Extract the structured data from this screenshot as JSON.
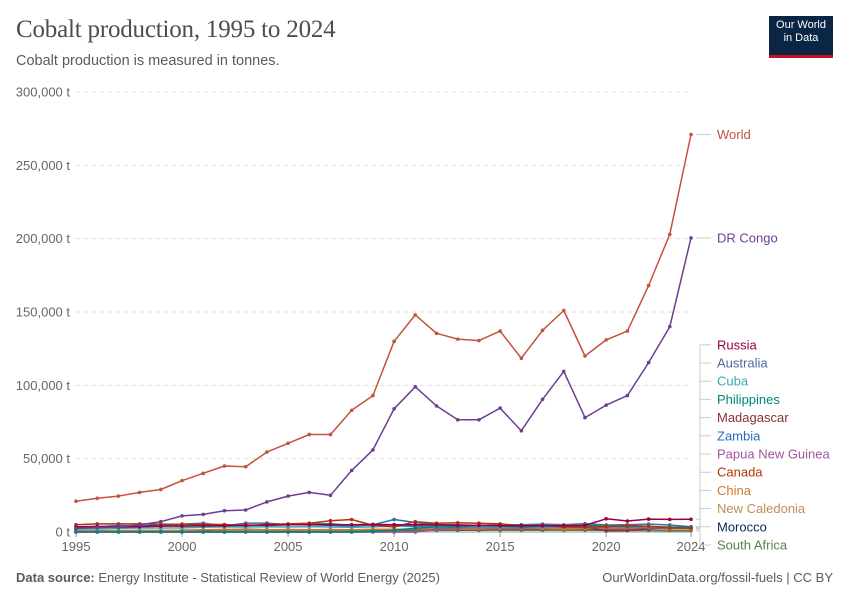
{
  "header": {
    "title": "Cobalt production, 1995 to 2024",
    "subtitle": "Cobalt production is measured in tonnes.",
    "logo_line1": "Our World",
    "logo_line2": "in Data"
  },
  "footer": {
    "source_label": "Data source:",
    "source_text": "Energy Institute - Statistical Review of World Energy (2025)",
    "link_text": "OurWorldinData.org/fossil-fuels | CC BY"
  },
  "chart_data": {
    "type": "line",
    "title": "Cobalt production, 1995 to 2024",
    "subtitle": "Cobalt production is measured in tonnes.",
    "ylim": [
      0,
      300000
    ],
    "y_ticks": [
      0,
      50000,
      100000,
      150000,
      200000,
      250000,
      300000
    ],
    "y_tick_labels": [
      "0 t",
      "50,000 t",
      "100,000 t",
      "150,000 t",
      "200,000 t",
      "250,000 t",
      "300,000 t"
    ],
    "xlim": [
      1995,
      2024
    ],
    "x_ticks": [
      1995,
      2000,
      2005,
      2010,
      2015,
      2020,
      2024
    ],
    "x_tick_labels": [
      "1995",
      "2000",
      "2005",
      "2010",
      "2015",
      "2020",
      "2024"
    ],
    "grid": "horizontal dashed",
    "legend": "right, labels at line ends",
    "x": [
      1995,
      1996,
      1997,
      1998,
      1999,
      2000,
      2001,
      2002,
      2003,
      2004,
      2005,
      2006,
      2007,
      2008,
      2009,
      2010,
      2011,
      2012,
      2013,
      2014,
      2015,
      2016,
      2017,
      2018,
      2019,
      2020,
      2021,
      2022,
      2023,
      2024
    ],
    "series": [
      {
        "name": "World",
        "color": "#c4523e",
        "values": [
          21000,
          23000,
          24500,
          27000,
          29000,
          35000,
          40000,
          45000,
          44500,
          54500,
          60500,
          66500,
          66500,
          83000,
          93000,
          130000,
          148000,
          135500,
          131500,
          130500,
          137000,
          118500,
          137500,
          151000,
          120000,
          131000,
          137000,
          168000,
          203000,
          271000
        ]
      },
      {
        "name": "DR Congo",
        "color": "#6d3e91",
        "values": [
          2500,
          3000,
          3500,
          5000,
          7000,
          11000,
          12000,
          14500,
          15000,
          20500,
          24500,
          27000,
          25000,
          42000,
          56000,
          84000,
          99000,
          86000,
          76500,
          76500,
          84500,
          69000,
          90500,
          109500,
          78000,
          86500,
          93000,
          115500,
          140000,
          200500
        ]
      },
      {
        "name": "Russia",
        "color": "#970046",
        "values": [
          3500,
          3800,
          3500,
          3800,
          4000,
          4000,
          4200,
          4200,
          4700,
          4700,
          5000,
          5000,
          5000,
          5000,
          5200,
          5000,
          5000,
          5000,
          4500,
          4500,
          4300,
          4300,
          4200,
          4200,
          4500,
          9000,
          7500,
          8800,
          8600,
          8700
        ]
      },
      {
        "name": "Canada",
        "color": "#b13507",
        "values": [
          5000,
          5500,
          5500,
          5500,
          5300,
          5300,
          5200,
          5100,
          4300,
          5200,
          5500,
          6000,
          7700,
          8500,
          4500,
          3500,
          7000,
          6000,
          6300,
          6000,
          5500,
          4300,
          4400,
          3600,
          3300,
          3700,
          4400,
          3900,
          2800,
          2600
        ]
      },
      {
        "name": "Philippines",
        "color": "#00847e",
        "values": [
          0,
          0,
          0,
          0,
          0,
          0,
          0,
          0,
          0,
          0,
          0,
          0,
          0,
          0,
          500,
          1200,
          2500,
          3500,
          3500,
          4500,
          4000,
          3500,
          4000,
          4000,
          4500,
          4000,
          3800,
          3800,
          3300,
          3200
        ]
      },
      {
        "name": "Australia",
        "color": "#4c6a9c",
        "values": [
          2500,
          3500,
          3000,
          3200,
          4100,
          5400,
          6000,
          4300,
          6000,
          6100,
          5000,
          5700,
          5600,
          4500,
          4600,
          5000,
          3900,
          4500,
          4500,
          4400,
          4900,
          5000,
          5400,
          4900,
          5700,
          4800,
          5000,
          5400,
          4800,
          3600
        ]
      },
      {
        "name": "Cuba",
        "color": "#38aaba",
        "values": [
          2000,
          2100,
          2500,
          2700,
          2700,
          2800,
          3200,
          3500,
          3400,
          3600,
          3400,
          3700,
          3400,
          3200,
          3500,
          4000,
          3700,
          3700,
          3800,
          3700,
          3500,
          3600,
          3500,
          3500,
          3600,
          3500,
          3600,
          3500,
          3400,
          3300
        ]
      },
      {
        "name": "Papua New Guinea",
        "color": "#a2559c",
        "values": [
          0,
          0,
          0,
          0,
          0,
          0,
          0,
          0,
          0,
          0,
          0,
          0,
          0,
          0,
          0,
          0,
          0,
          1700,
          3000,
          3000,
          2500,
          2600,
          3000,
          3300,
          3000,
          3000,
          2800,
          3000,
          2500,
          2900
        ]
      },
      {
        "name": "Madagascar",
        "color": "#883039",
        "values": [
          0,
          0,
          0,
          0,
          0,
          0,
          0,
          0,
          0,
          0,
          0,
          0,
          0,
          0,
          0,
          0,
          0,
          2000,
          2700,
          3700,
          3500,
          3200,
          3300,
          3500,
          3500,
          800,
          1000,
          2200,
          2800,
          3000
        ]
      },
      {
        "name": "China",
        "color": "#cf7a30",
        "values": [
          500,
          800,
          700,
          800,
          800,
          900,
          1500,
          1800,
          1600,
          1600,
          1700,
          1600,
          1700,
          1600,
          1800,
          1900,
          2000,
          2000,
          2000,
          2000,
          2100,
          2100,
          2200,
          2000,
          2100,
          2300,
          2200,
          2200,
          2200,
          2300
        ]
      },
      {
        "name": "New Caledonia",
        "color": "#bc8e5a",
        "values": [
          1000,
          1000,
          1100,
          1200,
          1100,
          1200,
          1400,
          1400,
          1300,
          1300,
          1400,
          1200,
          1400,
          1600,
          1700,
          1800,
          2100,
          2500,
          3000,
          3100,
          3000,
          3000,
          2800,
          2500,
          2800,
          2500,
          2300,
          2200,
          2300,
          2200
        ]
      },
      {
        "name": "Morocco",
        "color": "#00295b",
        "values": [
          500,
          500,
          500,
          600,
          600,
          1300,
          1300,
          1500,
          1800,
          1600,
          1500,
          1400,
          1500,
          1500,
          1500,
          1700,
          1800,
          1800,
          1700,
          1700,
          2000,
          1900,
          2000,
          2100,
          2000,
          2000,
          2000,
          2100,
          2100,
          2100
        ]
      },
      {
        "name": "South Africa",
        "color": "#578145",
        "values": [
          300,
          300,
          400,
          500,
          500,
          600,
          500,
          500,
          500,
          500,
          500,
          700,
          700,
          700,
          900,
          1000,
          1000,
          1100,
          1200,
          1200,
          1200,
          1200,
          1200,
          1200,
          1200,
          1100,
          1000,
          1000,
          900,
          900
        ]
      },
      {
        "name": "Zambia",
        "color": "#286bbb",
        "values": [
          3000,
          3500,
          4500,
          4000,
          5000,
          4000,
          4500,
          4000,
          4500,
          4500,
          5000,
          5000,
          4500,
          4000,
          5000,
          8500,
          6500,
          5000,
          5000,
          4500,
          4000,
          4500,
          4000,
          3500,
          3500,
          3000,
          3500,
          2500,
          3000,
          3000
        ]
      }
    ]
  }
}
